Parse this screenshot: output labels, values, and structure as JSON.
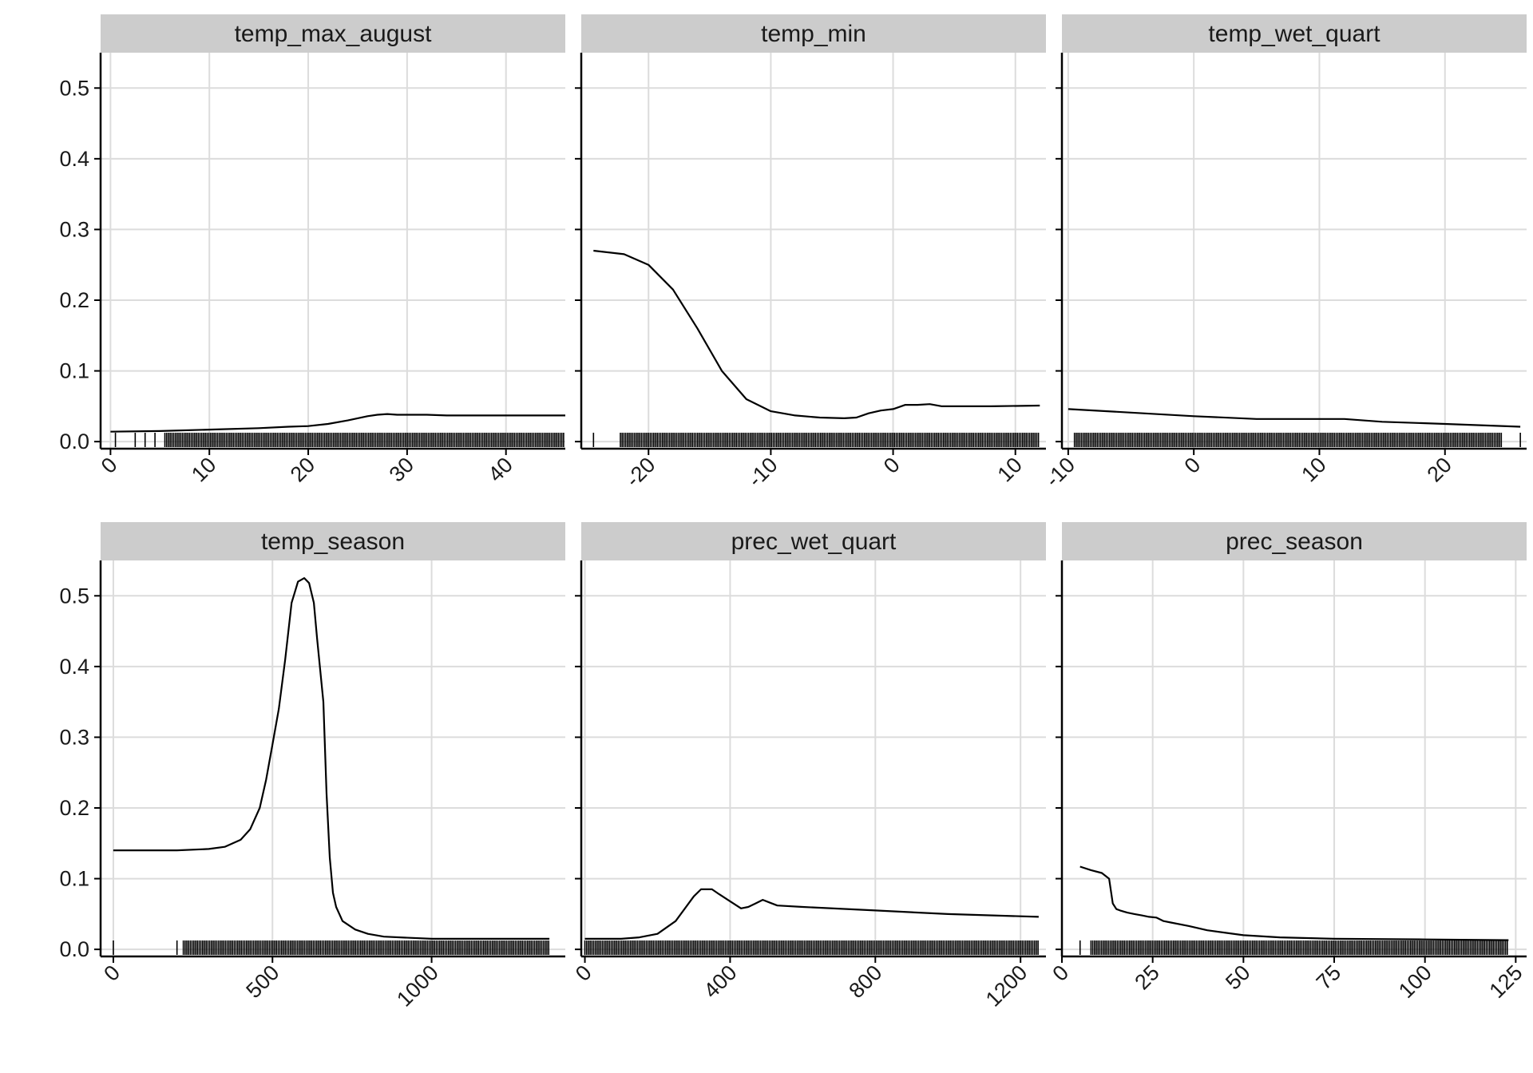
{
  "chart_data": [
    {
      "type": "line",
      "title": "temp_max_august",
      "xlim": [
        -1,
        46
      ],
      "ylim": [
        -0.01,
        0.55
      ],
      "xticks": [
        0,
        10,
        20,
        30,
        40
      ],
      "yticks": [
        0.0,
        0.1,
        0.2,
        0.3,
        0.4,
        0.5
      ],
      "ytick_labels": [
        "0.0",
        "0.1",
        "0.2",
        "0.3",
        "0.4",
        "0.5"
      ],
      "x": [
        0,
        5,
        10,
        15,
        18,
        20,
        22,
        24,
        26,
        27,
        28,
        29,
        30,
        32,
        34,
        40,
        46
      ],
      "y": [
        0.014,
        0.015,
        0.017,
        0.019,
        0.021,
        0.022,
        0.025,
        0.03,
        0.036,
        0.038,
        0.039,
        0.038,
        0.038,
        0.038,
        0.037,
        0.037,
        0.037
      ],
      "rug": {
        "min": 0,
        "max": 46,
        "dense_start": 5.5,
        "dense_end": 46,
        "sparse": [
          0.5,
          2.5,
          3.5,
          4.5
        ]
      }
    },
    {
      "type": "line",
      "title": "temp_min",
      "xlim": [
        -25.5,
        12.5
      ],
      "ylim": [
        -0.01,
        0.55
      ],
      "xticks": [
        -20,
        -10,
        0,
        10
      ],
      "yticks": [
        0.0,
        0.1,
        0.2,
        0.3,
        0.4,
        0.5
      ],
      "ytick_labels": [
        "0.0",
        "0.1",
        "0.2",
        "0.3",
        "0.4",
        "0.5"
      ],
      "x": [
        -24.5,
        -22,
        -20,
        -18,
        -16,
        -14,
        -12,
        -10,
        -8,
        -6,
        -4,
        -3,
        -2,
        -1,
        0,
        1,
        2,
        3,
        4,
        6,
        8,
        12
      ],
      "y": [
        0.27,
        0.265,
        0.25,
        0.215,
        0.16,
        0.1,
        0.06,
        0.043,
        0.037,
        0.034,
        0.033,
        0.034,
        0.04,
        0.044,
        0.046,
        0.052,
        0.052,
        0.053,
        0.05,
        0.05,
        0.05,
        0.051
      ],
      "rug": {
        "min": -24.5,
        "max": 12,
        "dense_start": -22.3,
        "dense_end": 12,
        "sparse": [
          -24.5
        ]
      }
    },
    {
      "type": "line",
      "title": "temp_wet_quart",
      "xlim": [
        -10.5,
        26.5
      ],
      "ylim": [
        -0.01,
        0.55
      ],
      "xticks": [
        -10,
        0,
        10,
        20
      ],
      "yticks": [
        0.0,
        0.1,
        0.2,
        0.3,
        0.4,
        0.5
      ],
      "ytick_labels": [
        "0.0",
        "0.1",
        "0.2",
        "0.3",
        "0.4",
        "0.5"
      ],
      "x": [
        -10,
        -5,
        0,
        5,
        10,
        12,
        15,
        20,
        26
      ],
      "y": [
        0.046,
        0.041,
        0.036,
        0.032,
        0.032,
        0.032,
        0.028,
        0.025,
        0.021
      ],
      "rug": {
        "min": -10,
        "max": 26,
        "dense_start": -9.5,
        "dense_end": 24.5,
        "sparse": [
          26
        ]
      }
    },
    {
      "type": "line",
      "title": "temp_season",
      "xlim": [
        -40,
        1420
      ],
      "ylim": [
        -0.01,
        0.55
      ],
      "xticks": [
        0,
        500,
        1000
      ],
      "yticks": [
        0.0,
        0.1,
        0.2,
        0.3,
        0.4,
        0.5
      ],
      "ytick_labels": [
        "0.0",
        "0.1",
        "0.2",
        "0.3",
        "0.4",
        "0.5"
      ],
      "x": [
        0,
        200,
        300,
        350,
        400,
        430,
        460,
        480,
        500,
        520,
        540,
        560,
        570,
        580,
        600,
        615,
        630,
        640,
        660,
        670,
        680,
        690,
        700,
        720,
        760,
        800,
        850,
        1000,
        1100,
        1370
      ],
      "y": [
        0.14,
        0.14,
        0.142,
        0.145,
        0.155,
        0.17,
        0.2,
        0.24,
        0.29,
        0.34,
        0.41,
        0.49,
        0.505,
        0.52,
        0.525,
        0.518,
        0.49,
        0.44,
        0.35,
        0.22,
        0.13,
        0.08,
        0.06,
        0.04,
        0.028,
        0.022,
        0.018,
        0.015,
        0.015,
        0.015
      ],
      "rug": {
        "min": 0,
        "max": 1370,
        "dense_start": 220,
        "dense_end": 1370,
        "sparse": [
          0,
          200
        ]
      }
    },
    {
      "type": "line",
      "title": "prec_wet_quart",
      "xlim": [
        -10,
        1270
      ],
      "ylim": [
        -0.01,
        0.55
      ],
      "xticks": [
        0,
        400,
        800,
        1200
      ],
      "yticks": [
        0.0,
        0.1,
        0.2,
        0.3,
        0.4,
        0.5
      ],
      "ytick_labels": [
        "0.0",
        "0.1",
        "0.2",
        "0.3",
        "0.4",
        "0.5"
      ],
      "x": [
        0,
        100,
        150,
        200,
        250,
        300,
        320,
        350,
        370,
        400,
        430,
        450,
        470,
        490,
        510,
        530,
        600,
        800,
        1000,
        1250
      ],
      "y": [
        0.015,
        0.015,
        0.017,
        0.022,
        0.04,
        0.075,
        0.085,
        0.085,
        0.078,
        0.068,
        0.058,
        0.06,
        0.065,
        0.07,
        0.066,
        0.062,
        0.06,
        0.055,
        0.05,
        0.046
      ],
      "rug": {
        "min": 0,
        "max": 1250,
        "dense_start": 0,
        "dense_end": 1250,
        "sparse": []
      }
    },
    {
      "type": "line",
      "title": "prec_season",
      "xlim": [
        0,
        128
      ],
      "ylim": [
        -0.01,
        0.55
      ],
      "xticks": [
        0,
        25,
        50,
        75,
        100,
        125
      ],
      "yticks": [
        0.0,
        0.1,
        0.2,
        0.3,
        0.4,
        0.5
      ],
      "ytick_labels": [
        "0.0",
        "0.1",
        "0.2",
        "0.3",
        "0.4",
        "0.5"
      ],
      "x": [
        5,
        8,
        11,
        13,
        14,
        15,
        16,
        18,
        20,
        22,
        24,
        26,
        28,
        30,
        35,
        40,
        50,
        60,
        75,
        100,
        123
      ],
      "y": [
        0.117,
        0.112,
        0.108,
        0.1,
        0.065,
        0.057,
        0.055,
        0.052,
        0.05,
        0.048,
        0.046,
        0.045,
        0.04,
        0.038,
        0.033,
        0.027,
        0.02,
        0.017,
        0.015,
        0.014,
        0.013
      ],
      "rug": {
        "min": 5,
        "max": 123,
        "dense_start": 8,
        "dense_end": 123,
        "sparse": [
          5
        ]
      }
    }
  ]
}
